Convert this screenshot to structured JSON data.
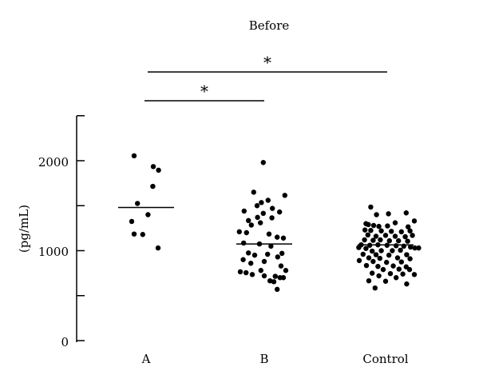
{
  "chart_data": {
    "type": "scatter",
    "title": "Before",
    "xlabel": "",
    "ylabel": "(pg/mL)",
    "categories": [
      "A",
      "B",
      "Control"
    ],
    "ylim": [
      0,
      2500
    ],
    "y_ticks_labeled": [
      "0",
      "1000",
      "2000"
    ],
    "y_ticks_all": [
      0,
      500,
      1000,
      1500,
      2000,
      2500
    ],
    "grid": false,
    "means": [
      1480,
      1075,
      1065
    ],
    "significance": [
      {
        "from": "A",
        "to": "Control",
        "label": "*"
      },
      {
        "from": "A",
        "to": "B",
        "label": "*"
      }
    ],
    "series": [
      {
        "category": "A",
        "points": [
          {
            "x": -0.25,
            "y": 2055
          },
          {
            "x": 0.15,
            "y": 1935
          },
          {
            "x": 0.26,
            "y": 1895
          },
          {
            "x": 0.14,
            "y": 1715
          },
          {
            "x": -0.18,
            "y": 1525
          },
          {
            "x": 0.04,
            "y": 1400
          },
          {
            "x": -0.3,
            "y": 1325
          },
          {
            "x": -0.25,
            "y": 1185
          },
          {
            "x": -0.07,
            "y": 1180
          },
          {
            "x": 0.25,
            "y": 1030
          }
        ]
      },
      {
        "category": "B",
        "points": [
          {
            "x": -0.02,
            "y": 1980
          },
          {
            "x": -0.22,
            "y": 1650
          },
          {
            "x": 0.43,
            "y": 1615
          },
          {
            "x": 0.08,
            "y": 1560
          },
          {
            "x": -0.06,
            "y": 1535
          },
          {
            "x": -0.15,
            "y": 1500
          },
          {
            "x": 0.17,
            "y": 1470
          },
          {
            "x": -0.42,
            "y": 1440
          },
          {
            "x": 0.32,
            "y": 1430
          },
          {
            "x": -0.02,
            "y": 1415
          },
          {
            "x": -0.14,
            "y": 1370
          },
          {
            "x": 0.16,
            "y": 1365
          },
          {
            "x": -0.33,
            "y": 1335
          },
          {
            "x": -0.08,
            "y": 1310
          },
          {
            "x": -0.27,
            "y": 1285
          },
          {
            "x": -0.52,
            "y": 1210
          },
          {
            "x": -0.37,
            "y": 1200
          },
          {
            "x": 0.1,
            "y": 1185
          },
          {
            "x": 0.27,
            "y": 1150
          },
          {
            "x": 0.4,
            "y": 1140
          },
          {
            "x": -0.43,
            "y": 1085
          },
          {
            "x": -0.1,
            "y": 1075
          },
          {
            "x": 0.14,
            "y": 1050
          },
          {
            "x": -0.33,
            "y": 975
          },
          {
            "x": 0.37,
            "y": 970
          },
          {
            "x": 0.07,
            "y": 960
          },
          {
            "x": -0.2,
            "y": 950
          },
          {
            "x": 0.28,
            "y": 930
          },
          {
            "x": -0.44,
            "y": 900
          },
          {
            "x": 0.0,
            "y": 880
          },
          {
            "x": -0.28,
            "y": 860
          },
          {
            "x": 0.35,
            "y": 830
          },
          {
            "x": -0.07,
            "y": 780
          },
          {
            "x": 0.45,
            "y": 780
          },
          {
            "x": -0.5,
            "y": 765
          },
          {
            "x": -0.38,
            "y": 755
          },
          {
            "x": -0.25,
            "y": 735
          },
          {
            "x": 0.0,
            "y": 720
          },
          {
            "x": 0.23,
            "y": 715
          },
          {
            "x": 0.33,
            "y": 700
          },
          {
            "x": 0.4,
            "y": 700
          },
          {
            "x": 0.12,
            "y": 665
          },
          {
            "x": 0.2,
            "y": 655
          },
          {
            "x": 0.27,
            "y": 570
          }
        ]
      },
      {
        "category": "Control",
        "points": [
          {
            "x": -0.31,
            "y": 1485
          },
          {
            "x": 0.06,
            "y": 1410
          },
          {
            "x": 0.43,
            "y": 1420
          },
          {
            "x": -0.19,
            "y": 1400
          },
          {
            "x": -0.41,
            "y": 1300
          },
          {
            "x": 0.2,
            "y": 1310
          },
          {
            "x": 0.6,
            "y": 1330
          },
          {
            "x": -0.36,
            "y": 1290
          },
          {
            "x": -0.25,
            "y": 1280
          },
          {
            "x": -0.14,
            "y": 1270
          },
          {
            "x": 0.04,
            "y": 1275
          },
          {
            "x": 0.47,
            "y": 1265
          },
          {
            "x": -0.43,
            "y": 1230
          },
          {
            "x": -0.31,
            "y": 1225
          },
          {
            "x": -0.09,
            "y": 1220
          },
          {
            "x": 0.12,
            "y": 1215
          },
          {
            "x": 0.33,
            "y": 1210
          },
          {
            "x": 0.51,
            "y": 1220
          },
          {
            "x": -0.37,
            "y": 1175
          },
          {
            "x": -0.2,
            "y": 1160
          },
          {
            "x": 0.0,
            "y": 1170
          },
          {
            "x": 0.2,
            "y": 1160
          },
          {
            "x": 0.41,
            "y": 1155
          },
          {
            "x": 0.56,
            "y": 1170
          },
          {
            "x": -0.44,
            "y": 1120
          },
          {
            "x": -0.26,
            "y": 1115
          },
          {
            "x": -0.11,
            "y": 1120
          },
          {
            "x": 0.08,
            "y": 1110
          },
          {
            "x": 0.27,
            "y": 1110
          },
          {
            "x": 0.46,
            "y": 1105
          },
          {
            "x": -0.51,
            "y": 1065
          },
          {
            "x": -0.33,
            "y": 1060
          },
          {
            "x": -0.16,
            "y": 1065
          },
          {
            "x": 0.03,
            "y": 1060
          },
          {
            "x": 0.22,
            "y": 1055
          },
          {
            "x": 0.38,
            "y": 1050
          },
          {
            "x": -0.56,
            "y": 1035
          },
          {
            "x": -0.41,
            "y": 1025
          },
          {
            "x": 0.52,
            "y": 1040
          },
          {
            "x": 0.61,
            "y": 1030
          },
          {
            "x": 0.69,
            "y": 1030
          },
          {
            "x": -0.28,
            "y": 995
          },
          {
            "x": -0.09,
            "y": 1000
          },
          {
            "x": 0.14,
            "y": 1000
          },
          {
            "x": 0.31,
            "y": 1005
          },
          {
            "x": -0.47,
            "y": 960
          },
          {
            "x": -0.2,
            "y": 955
          },
          {
            "x": 0.07,
            "y": 950
          },
          {
            "x": 0.44,
            "y": 955
          },
          {
            "x": -0.35,
            "y": 920
          },
          {
            "x": -0.12,
            "y": 915
          },
          {
            "x": 0.25,
            "y": 920
          },
          {
            "x": 0.51,
            "y": 910
          },
          {
            "x": -0.55,
            "y": 890
          },
          {
            "x": -0.26,
            "y": 880
          },
          {
            "x": 0.02,
            "y": 870
          },
          {
            "x": 0.33,
            "y": 875
          },
          {
            "x": -0.4,
            "y": 835
          },
          {
            "x": -0.16,
            "y": 825
          },
          {
            "x": 0.16,
            "y": 830
          },
          {
            "x": 0.43,
            "y": 820
          },
          {
            "x": -0.05,
            "y": 790
          },
          {
            "x": 0.28,
            "y": 795
          },
          {
            "x": 0.5,
            "y": 790
          },
          {
            "x": -0.28,
            "y": 750
          },
          {
            "x": 0.1,
            "y": 745
          },
          {
            "x": 0.36,
            "y": 740
          },
          {
            "x": 0.6,
            "y": 735
          },
          {
            "x": -0.14,
            "y": 720
          },
          {
            "x": 0.22,
            "y": 700
          },
          {
            "x": -0.35,
            "y": 665
          },
          {
            "x": 0.0,
            "y": 660
          },
          {
            "x": 0.44,
            "y": 630
          },
          {
            "x": -0.22,
            "y": 585
          }
        ]
      }
    ]
  }
}
